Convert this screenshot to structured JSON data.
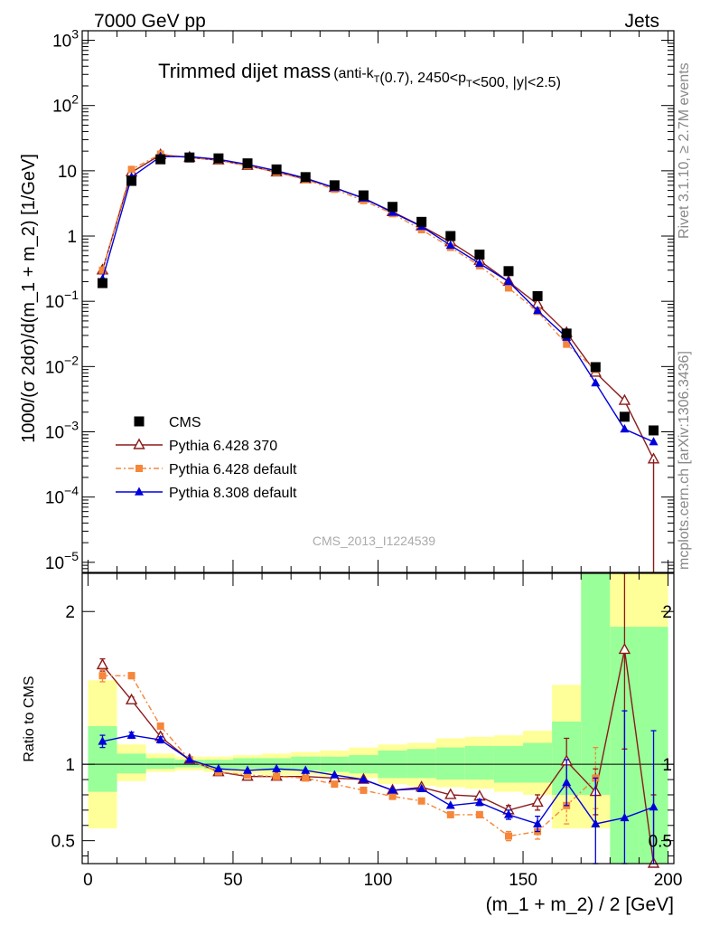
{
  "header": {
    "left": "7000 GeV pp",
    "right": "Jets"
  },
  "title": {
    "main": "Trimmed dijet mass",
    "cuts": "(anti-k_T(0.7), 2450<p_T<500, |y|<2.5)"
  },
  "side_labels": {
    "rivet": "Rivet 3.1.10, ≥ 2.7M events",
    "mcplots": "mcplots.cern.ch [arXiv:1306.3436]"
  },
  "watermark": "CMS_2013_I1224539",
  "colors": {
    "cms": "#000000",
    "py6_370": "#8b1a1a",
    "py6_default": "#f5863a",
    "py8": "#0000dd",
    "band_stat": "#99ff99",
    "band_syst": "#ffff99"
  },
  "chart_data": [
    {
      "type": "scatter",
      "panel": "main",
      "ylabel": "1000/(σ 2dσ)/d(m_1 + m_2) [1/GeV]",
      "yscale": "log",
      "ylim": [
        7e-06,
        1400
      ],
      "xlim": [
        -2,
        202
      ],
      "y_ticks": [
        {
          "v": 1e-05,
          "base": "10",
          "exp": "−5"
        },
        {
          "v": 0.0001,
          "base": "10",
          "exp": "−4"
        },
        {
          "v": 0.001,
          "base": "10",
          "exp": "−3"
        },
        {
          "v": 0.01,
          "base": "10",
          "exp": "−2"
        },
        {
          "v": 0.1,
          "base": "10",
          "exp": "−1"
        },
        {
          "v": 1,
          "base": "1",
          "exp": ""
        },
        {
          "v": 10,
          "base": "10",
          "exp": ""
        },
        {
          "v": 100,
          "base": "10",
          "exp": "2"
        },
        {
          "v": 1000,
          "base": "10",
          "exp": "3"
        }
      ],
      "legend_position": "lower-left",
      "x": [
        5,
        15,
        25,
        35,
        45,
        55,
        65,
        75,
        85,
        95,
        105,
        115,
        125,
        135,
        145,
        155,
        165,
        175,
        185,
        195
      ],
      "series": [
        {
          "name": "CMS",
          "marker": "square",
          "values": [
            0.19,
            7.0,
            15.0,
            16.0,
            15.5,
            13.0,
            10.5,
            8.0,
            6.0,
            4.2,
            2.8,
            1.65,
            1.0,
            0.52,
            0.29,
            0.12,
            0.032,
            0.0098,
            0.0017,
            0.00105
          ]
        },
        {
          "name": "Pythia 6.428 370",
          "marker": "open-triangle",
          "values": [
            0.3,
            9.5,
            17.5,
            16.0,
            14.5,
            12.0,
            9.5,
            7.5,
            5.5,
            3.8,
            2.35,
            1.42,
            0.81,
            0.42,
            0.2,
            0.09,
            0.033,
            0.0081,
            0.003,
            0.00038
          ]
        },
        {
          "name": "Pythia 6.428 default",
          "marker": "filled-square",
          "values": [
            0.3,
            10.5,
            18.0,
            16.0,
            14.5,
            12.0,
            9.5,
            7.3,
            5.2,
            3.5,
            2.2,
            1.25,
            0.67,
            0.35,
            0.16,
            0.07,
            0.022,
            0.009,
            null,
            null
          ]
        },
        {
          "name": "Pythia 8.308 default",
          "marker": "filled-triangle",
          "values": [
            0.22,
            8.0,
            16.5,
            16.5,
            15.0,
            12.5,
            10.0,
            7.7,
            5.5,
            3.8,
            2.3,
            1.4,
            0.72,
            0.38,
            0.2,
            0.072,
            0.028,
            0.0056,
            0.0011,
            0.0007
          ]
        }
      ]
    },
    {
      "type": "line",
      "panel": "ratio",
      "ylabel": "Ratio to CMS",
      "xlabel": "(m_1 + m_2) / 2 [GeV]",
      "ylim": [
        0.35,
        2.25
      ],
      "xlim": [
        -2,
        202
      ],
      "y_ticks": [
        0.5,
        1,
        2
      ],
      "x_ticks": [
        0,
        50,
        100,
        150,
        200
      ],
      "x": [
        5,
        15,
        25,
        35,
        45,
        55,
        65,
        75,
        85,
        95,
        105,
        115,
        125,
        135,
        145,
        155,
        165,
        175,
        185,
        195
      ],
      "bands": {
        "edges": [
          0,
          10,
          20,
          30,
          40,
          50,
          60,
          70,
          80,
          90,
          100,
          110,
          120,
          130,
          140,
          150,
          160,
          170,
          180,
          190,
          200
        ],
        "stat_lo": [
          0.82,
          0.94,
          0.97,
          0.98,
          0.97,
          0.97,
          0.96,
          0.96,
          0.95,
          0.94,
          0.91,
          0.91,
          0.9,
          0.9,
          0.88,
          0.88,
          0.8,
          0.8,
          0.35,
          0.35
        ],
        "stat_hi": [
          1.25,
          1.07,
          1.04,
          1.03,
          1.03,
          1.04,
          1.04,
          1.05,
          1.05,
          1.06,
          1.09,
          1.1,
          1.11,
          1.12,
          1.12,
          1.14,
          1.28,
          2.25,
          1.9,
          1.9
        ],
        "syst_lo": [
          0.58,
          0.89,
          0.95,
          0.96,
          0.95,
          0.94,
          0.93,
          0.93,
          0.92,
          0.91,
          0.87,
          0.86,
          0.85,
          0.84,
          0.82,
          0.8,
          0.58,
          0.58,
          0.35,
          0.35
        ],
        "syst_hi": [
          1.55,
          1.13,
          1.07,
          1.05,
          1.05,
          1.06,
          1.07,
          1.08,
          1.09,
          1.11,
          1.13,
          1.14,
          1.17,
          1.18,
          1.19,
          1.22,
          1.52,
          2.25,
          2.25,
          2.25
        ]
      },
      "series": [
        {
          "name": "Pythia 6.428 370",
          "values": [
            1.65,
            1.42,
            1.18,
            1.03,
            0.95,
            0.92,
            0.92,
            0.92,
            0.91,
            0.9,
            0.83,
            0.85,
            0.8,
            0.79,
            0.7,
            0.75,
            1.02,
            0.82,
            1.75,
            0.35
          ],
          "err": [
            0.04,
            0.02,
            0.02,
            0.01,
            0.01,
            0.01,
            0.01,
            0.01,
            0.01,
            0.01,
            0.01,
            0.01,
            0.01,
            0.01,
            0.03,
            0.05,
            0.15,
            0.15,
            0.65,
            0.45
          ]
        },
        {
          "name": "Pythia 6.428 default",
          "values": [
            1.58,
            1.58,
            1.25,
            1.03,
            0.95,
            0.93,
            0.92,
            0.91,
            0.87,
            0.83,
            0.79,
            0.76,
            0.67,
            0.67,
            0.53,
            0.56,
            0.73,
            0.91,
            null,
            null
          ],
          "err": [
            0.04,
            0.02,
            0.02,
            0.01,
            0.01,
            0.01,
            0.01,
            0.01,
            0.01,
            0.01,
            0.01,
            0.01,
            0.01,
            0.02,
            0.03,
            0.05,
            0.12,
            0.2,
            null,
            null
          ]
        },
        {
          "name": "Pythia 8.308 default",
          "values": [
            1.15,
            1.19,
            1.16,
            1.03,
            0.97,
            0.96,
            0.97,
            0.96,
            0.93,
            0.9,
            0.83,
            0.84,
            0.73,
            0.75,
            0.67,
            0.61,
            0.88,
            0.61,
            0.65,
            0.72
          ],
          "err": [
            0.04,
            0.02,
            0.02,
            0.01,
            0.01,
            0.01,
            0.01,
            0.01,
            0.01,
            0.01,
            0.01,
            0.01,
            0.01,
            0.02,
            0.03,
            0.05,
            0.15,
            0.3,
            0.7,
            0.5
          ]
        }
      ]
    }
  ]
}
